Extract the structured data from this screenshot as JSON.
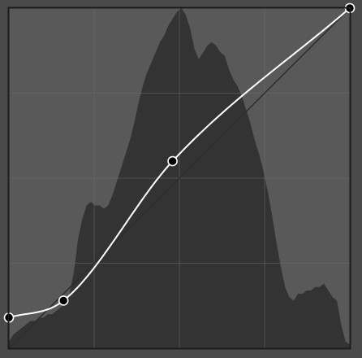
{
  "curve_editor": {
    "channel": "RGB",
    "colors": {
      "frame_bg": "#4a4a4a",
      "plot_bg": "#595959",
      "plot_border": "#1c1c1c",
      "grid_line": "#6a6a6a",
      "histogram_fill": "#333333",
      "baseline": "#2d2d2d",
      "curve": "#ffffff",
      "point_fill": "#000000",
      "point_stroke": "#ffffff"
    },
    "grid_divisions": 4,
    "histogram": [
      0.02,
      0.04,
      0.05,
      0.06,
      0.07,
      0.08,
      0.08,
      0.09,
      0.09,
      0.1,
      0.1,
      0.11,
      0.12,
      0.13,
      0.16,
      0.22,
      0.32,
      0.38,
      0.42,
      0.43,
      0.42,
      0.42,
      0.41,
      0.42,
      0.45,
      0.49,
      0.53,
      0.57,
      0.61,
      0.66,
      0.72,
      0.77,
      0.81,
      0.84,
      0.87,
      0.9,
      0.92,
      0.95,
      0.97,
      0.99,
      1.0,
      0.98,
      0.94,
      0.88,
      0.85,
      0.87,
      0.89,
      0.9,
      0.89,
      0.87,
      0.86,
      0.82,
      0.79,
      0.77,
      0.74,
      0.7,
      0.66,
      0.61,
      0.57,
      0.52,
      0.46,
      0.39,
      0.31,
      0.24,
      0.18,
      0.15,
      0.14,
      0.16,
      0.16,
      0.17,
      0.17,
      0.18,
      0.18,
      0.19,
      0.17,
      0.15,
      0.14,
      0.07,
      0.02,
      0.01
    ],
    "control_points": [
      {
        "input": 0,
        "output": 0.09
      },
      {
        "input": 0.16,
        "output": 0.14
      },
      {
        "input": 0.48,
        "output": 0.55
      },
      {
        "input": 1,
        "output": 1
      }
    ]
  }
}
